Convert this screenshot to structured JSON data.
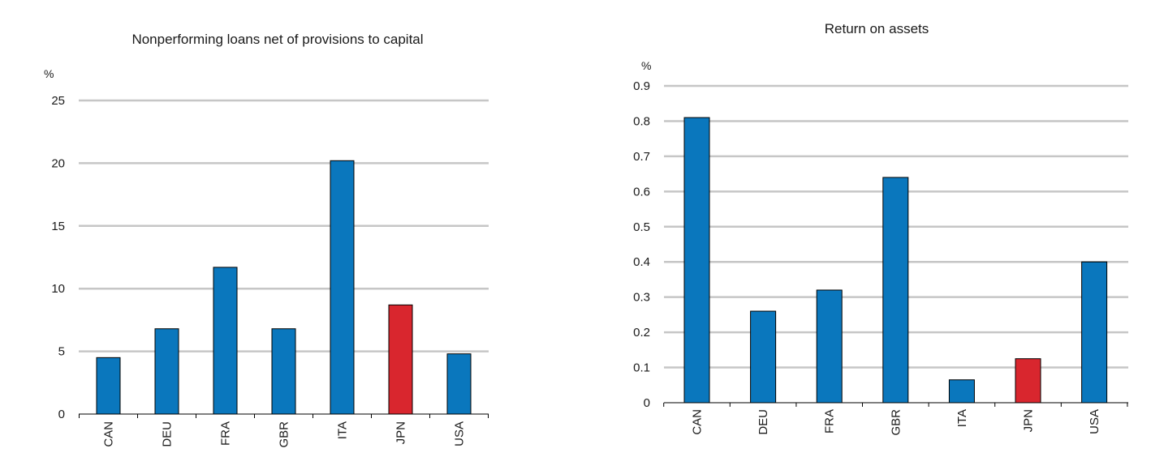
{
  "chart_data": [
    {
      "type": "bar",
      "title": "Nonperforming loans net of provisions to capital",
      "unit": "%",
      "categories": [
        "CAN",
        "DEU",
        "FRA",
        "GBR",
        "ITA",
        "JPN",
        "USA"
      ],
      "values": [
        4.5,
        6.8,
        11.7,
        6.8,
        20.2,
        8.7,
        4.8
      ],
      "ylim": [
        0,
        25
      ],
      "yticks": [
        0,
        5,
        10,
        15,
        20,
        25
      ],
      "grid": true,
      "colors": [
        "#0a77bd",
        "#0a77bd",
        "#0a77bd",
        "#0a77bd",
        "#0a77bd",
        "#d9262e",
        "#0a77bd"
      ]
    },
    {
      "type": "bar",
      "title": "Return on assets",
      "unit": "%",
      "categories": [
        "CAN",
        "DEU",
        "FRA",
        "GBR",
        "ITA",
        "JPN",
        "USA"
      ],
      "values": [
        0.81,
        0.26,
        0.32,
        0.64,
        0.065,
        0.125,
        0.4
      ],
      "ylim": [
        0,
        0.9
      ],
      "yticks": [
        "0",
        "0.1",
        "0.2",
        "0.3",
        "0.4",
        "0.5",
        "0.6",
        "0.7",
        "0.8",
        "0.9"
      ],
      "grid": true,
      "colors": [
        "#0a77bd",
        "#0a77bd",
        "#0a77bd",
        "#0a77bd",
        "#0a77bd",
        "#d9262e",
        "#0a77bd"
      ]
    }
  ]
}
